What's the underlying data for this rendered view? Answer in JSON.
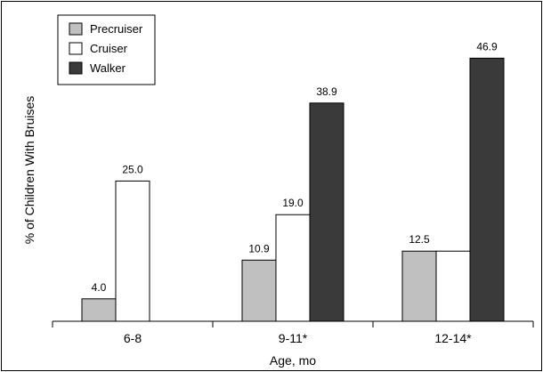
{
  "chart_data": {
    "type": "bar",
    "categories": [
      "6-8",
      "9-11*",
      "12-14*"
    ],
    "series": [
      {
        "name": "Precruiser",
        "values": [
          4.0,
          10.9,
          12.5
        ],
        "color": "#c0c0c0",
        "labels": [
          "4.0",
          "10.9",
          "12.5"
        ]
      },
      {
        "name": "Cruiser",
        "values": [
          25.0,
          19.0,
          12.5
        ],
        "color": "#ffffff",
        "labels": [
          "25.0",
          "19.0",
          ""
        ]
      },
      {
        "name": "Walker",
        "values": [
          null,
          38.9,
          46.9
        ],
        "color": "#3a3a3a",
        "labels": [
          "",
          "38.9",
          "46.9"
        ]
      }
    ],
    "xlabel": "Age, mo",
    "ylabel": "% of Children With Bruises",
    "ylim": [
      0,
      56
    ],
    "legend_position": "top-left",
    "grid": false
  }
}
